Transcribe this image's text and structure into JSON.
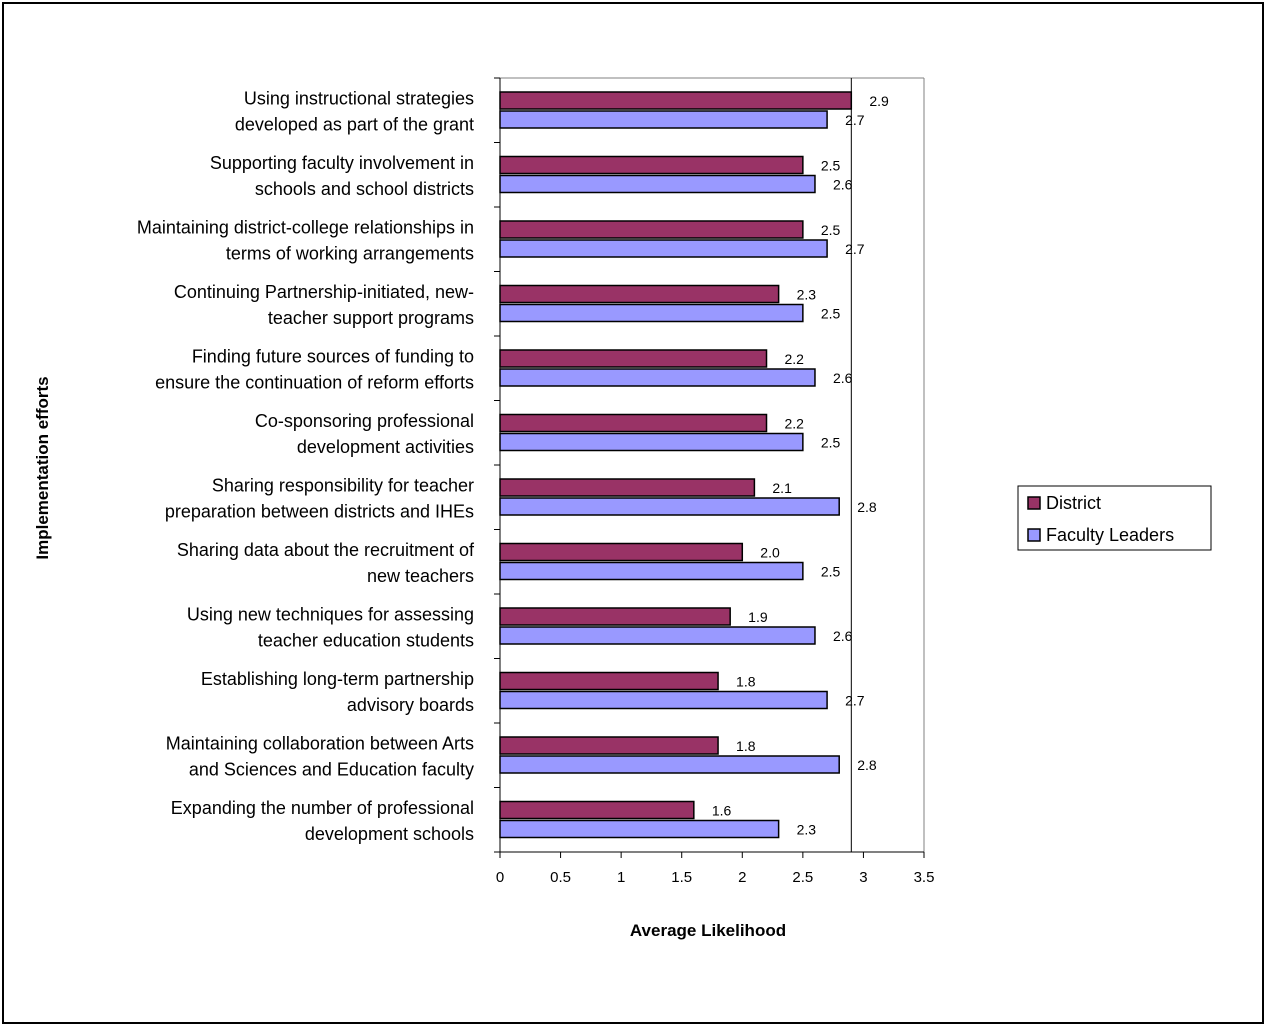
{
  "chart_data": {
    "type": "bar",
    "orientation": "horizontal",
    "title": "",
    "xlabel": "Average Likelihood",
    "ylabel": "Implementation efforts",
    "xlim": [
      0,
      3.5
    ],
    "x_ticks": [
      "0",
      "0.5",
      "1",
      "1.5",
      "2",
      "2.5",
      "3",
      "3.5"
    ],
    "categories": [
      [
        "Using instructional strategies",
        "developed as part of the grant"
      ],
      [
        "Supporting faculty involvement in",
        "schools and school districts"
      ],
      [
        "Maintaining district-college relationships in",
        "terms of working arrangements"
      ],
      [
        "Continuing Partnership-initiated, new-",
        "teacher support programs"
      ],
      [
        "Finding future sources of funding to",
        "ensure the continuation of reform efforts"
      ],
      [
        "Co-sponsoring professional",
        "development activities"
      ],
      [
        "Sharing responsibility for teacher",
        "preparation between districts and IHEs"
      ],
      [
        "Sharing data about the recruitment of",
        "new teachers"
      ],
      [
        "Using new techniques for assessing",
        "teacher education students"
      ],
      [
        "Establishing long-term partnership",
        "advisory boards"
      ],
      [
        "Maintaining collaboration between Arts",
        "and Sciences and Education faculty"
      ],
      [
        "Expanding the number of professional",
        "development schools"
      ]
    ],
    "series": [
      {
        "name": "District",
        "color": "#993366",
        "values": [
          2.9,
          2.5,
          2.5,
          2.3,
          2.2,
          2.2,
          2.1,
          2.0,
          1.9,
          1.8,
          1.8,
          1.6
        ],
        "labels": [
          "2.9",
          "2.5",
          "2.5",
          "2.3",
          "2.2",
          "2.2",
          "2.1",
          "2.0",
          "1.9",
          "1.8",
          "1.8",
          "1.6"
        ]
      },
      {
        "name": "Faculty Leaders",
        "color": "#9999ff",
        "values": [
          2.7,
          2.6,
          2.7,
          2.5,
          2.6,
          2.5,
          2.8,
          2.5,
          2.6,
          2.7,
          2.8,
          2.3
        ],
        "labels": [
          "2.7",
          "2.6",
          "2.7",
          "2.5",
          "2.6",
          "2.5",
          "2.8",
          "2.5",
          "2.6",
          "2.7",
          "2.8",
          "2.3"
        ]
      }
    ],
    "reference_line": 2.9,
    "legend_position": "right",
    "grid": false
  }
}
